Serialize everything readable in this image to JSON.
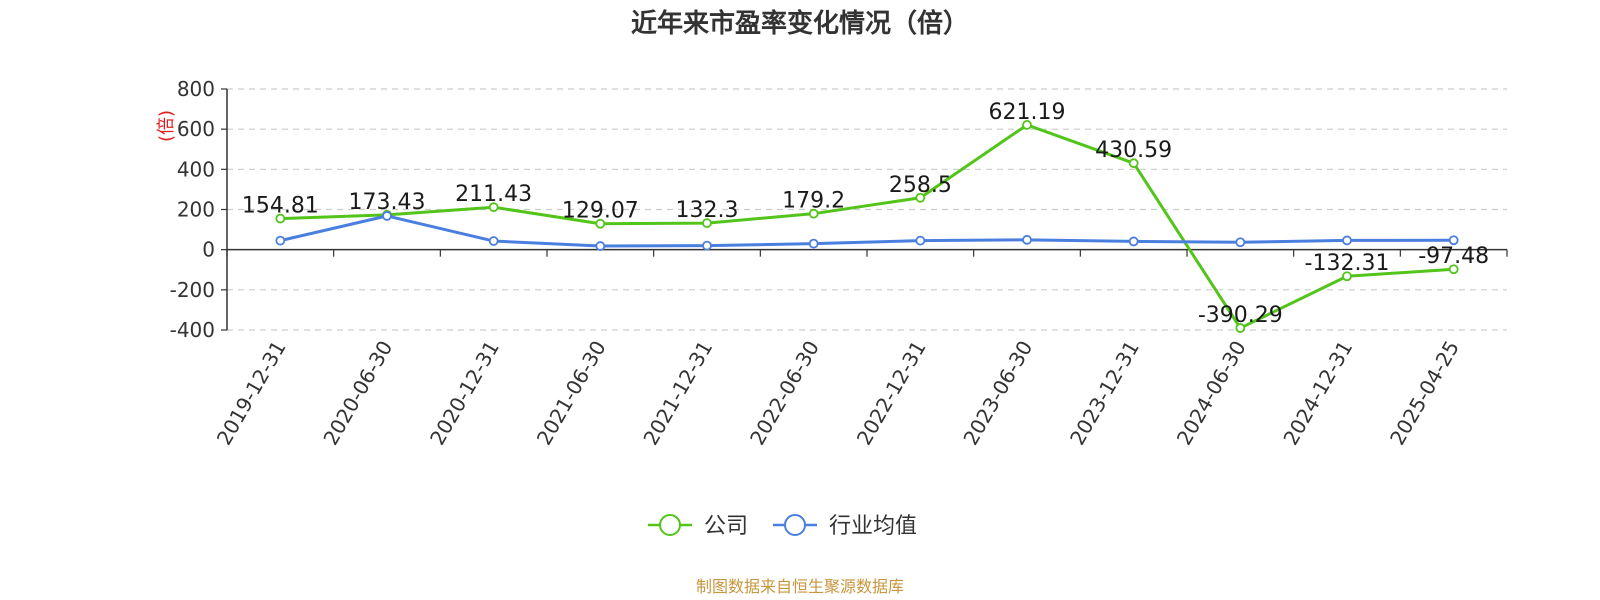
{
  "chart_data": {
    "type": "line",
    "title": "近年来市盈率变化情况（倍）",
    "ylabel": "(倍)",
    "categories": [
      "2019-12-31",
      "2020-06-30",
      "2020-12-31",
      "2021-06-30",
      "2021-12-31",
      "2022-06-30",
      "2022-12-31",
      "2023-06-30",
      "2023-12-31",
      "2024-06-30",
      "2024-12-31",
      "2025-04-25"
    ],
    "yticks": [
      800,
      600,
      400,
      200,
      0,
      -200,
      -400
    ],
    "ylim": [
      -400,
      800
    ],
    "grid": true,
    "legend_position": "bottom-center",
    "series": [
      {
        "name": "公司",
        "color": "#52c41a",
        "show_labels": true,
        "values": [
          154.81,
          173.43,
          211.43,
          129.07,
          132.3,
          179.2,
          258.5,
          621.19,
          430.59,
          -390.29,
          -132.31,
          -97.48
        ],
        "labels": [
          "154.81",
          "173.43",
          "211.43",
          "129.07",
          "132.3",
          "179.2",
          "258.5",
          "621.19",
          "430.59",
          "-390.29",
          "-132.31",
          "-97.48"
        ]
      },
      {
        "name": "行业均值",
        "color": "#4a7fe0",
        "show_labels": false,
        "values": [
          45,
          168,
          43,
          18,
          20,
          30,
          45,
          49,
          41,
          37,
          46,
          47
        ]
      }
    ]
  },
  "footer": {
    "source": "制图数据来自恒生聚源数据库"
  }
}
